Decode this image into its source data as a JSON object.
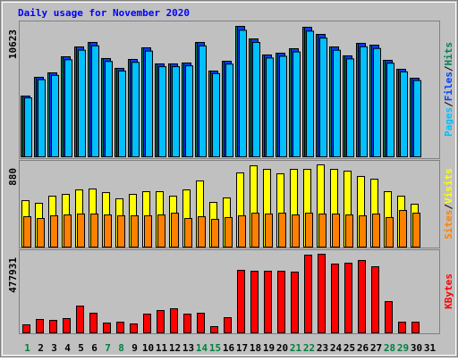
{
  "separator": "/",
  "chart_data": [
    {
      "type": "bar",
      "title": "Daily usage for November 2020",
      "ylim": [
        0,
        10623
      ],
      "yticks": [
        10623
      ],
      "series": [
        {
          "name": "Hits",
          "color": "#00805c",
          "values": [
            4948,
            6476,
            6839,
            8149,
            8949,
            9313,
            8004,
            7203,
            7931,
            8877,
            7567,
            7567,
            7640,
            9313,
            6985,
            7785,
            10623,
            9604,
            8295,
            8440,
            8804,
            10550,
            9968,
            8949,
            8222,
            9241,
            9095,
            7858,
            7130,
            6403,
            null
          ]
        },
        {
          "name": "Files",
          "color": "#0040ff",
          "values": [
            4948,
            6476,
            6839,
            8149,
            8949,
            9313,
            8004,
            7203,
            7931,
            8877,
            7567,
            7567,
            7640,
            9313,
            6985,
            7785,
            10623,
            9604,
            8295,
            8440,
            8804,
            10550,
            9968,
            8949,
            8222,
            9241,
            9095,
            7858,
            7130,
            6403,
            null
          ]
        },
        {
          "name": "Pages",
          "color": "#00c0ff",
          "values": [
            4800,
            6282,
            6634,
            7905,
            8681,
            9034,
            7764,
            6987,
            7693,
            8611,
            7340,
            7340,
            7411,
            9034,
            6775,
            7551,
            10304,
            9316,
            8046,
            8187,
            8540,
            10234,
            9669,
            8681,
            7975,
            8964,
            8822,
            7622,
            6916,
            6211,
            null
          ]
        }
      ]
    },
    {
      "type": "bar",
      "ylim": [
        0,
        880
      ],
      "yticks": [
        880
      ],
      "series": [
        {
          "name": "Visits",
          "color": "#ffff00",
          "values": [
            497,
            469,
            545,
            564,
            612,
            622,
            583,
            517,
            564,
            593,
            593,
            545,
            612,
            708,
            478,
            526,
            794,
            870,
            832,
            784,
            832,
            832,
            880,
            832,
            813,
            756,
            727,
            593,
            545,
            459,
            null
          ]
        },
        {
          "name": "Sites",
          "color": "#ff8000",
          "values": [
            325,
            306,
            335,
            344,
            354,
            354,
            344,
            335,
            335,
            335,
            344,
            363,
            306,
            325,
            297,
            316,
            335,
            363,
            354,
            363,
            344,
            363,
            354,
            354,
            344,
            335,
            354,
            316,
            392,
            363,
            null
          ]
        }
      ]
    },
    {
      "type": "bar",
      "ylim": [
        0,
        477931
      ],
      "yticks": [
        477931
      ],
      "categories": [
        "1",
        "2",
        "3",
        "4",
        "5",
        "6",
        "7",
        "8",
        "9",
        "10",
        "11",
        "12",
        "13",
        "14",
        "15",
        "16",
        "17",
        "18",
        "19",
        "20",
        "21",
        "22",
        "23",
        "24",
        "25",
        "26",
        "27",
        "28",
        "29",
        "30",
        "31"
      ],
      "category_colors": [
        "#008040",
        "#000000",
        "#000000",
        "#000000",
        "#000000",
        "#000000",
        "#008040",
        "#008040",
        "#000000",
        "#000000",
        "#000000",
        "#000000",
        "#000000",
        "#008040",
        "#008040",
        "#000000",
        "#000000",
        "#000000",
        "#000000",
        "#000000",
        "#008040",
        "#008040",
        "#000000",
        "#000000",
        "#000000",
        "#000000",
        "#000000",
        "#008040",
        "#008040",
        "#000000",
        "#000000"
      ],
      "series": [
        {
          "name": "KBytes",
          "color": "#ff0000",
          "values": [
            48879,
            81465,
            76034,
            86896,
            162930,
            119482,
            59741,
            65172,
            54310,
            114051,
            135775,
            146637,
            114051,
            119482,
            38017,
            92327,
            380170,
            374739,
            374739,
            374739,
            369308,
            472500,
            477931,
            418187,
            423618,
            439911,
            401894,
            190085,
            65172,
            65172,
            null
          ]
        }
      ]
    }
  ]
}
